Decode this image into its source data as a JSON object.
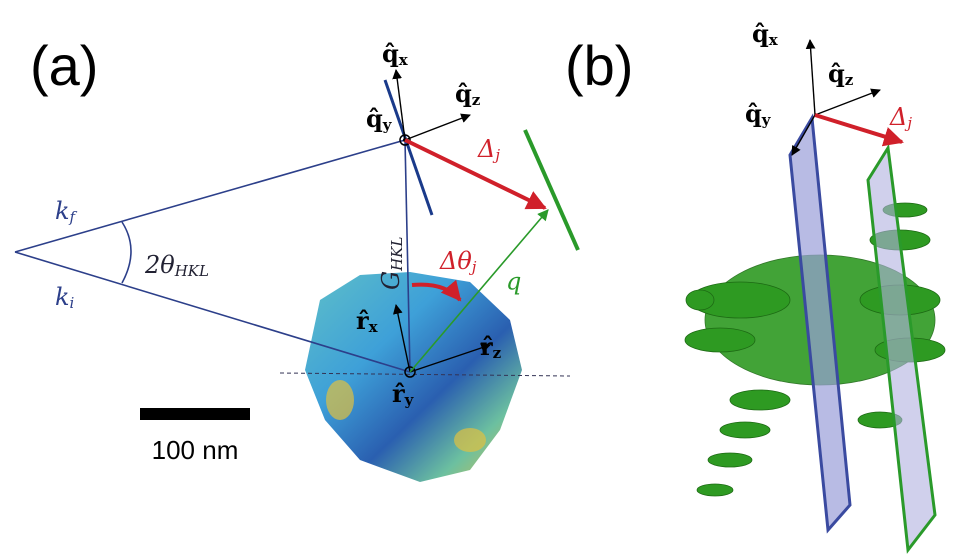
{
  "panel_a": {
    "label": "(a)",
    "qx": {
      "base": "q̂",
      "sub": "x"
    },
    "qz": {
      "base": "q̂",
      "sub": "z"
    },
    "qy": {
      "base": "q̂",
      "sub": "y"
    },
    "delta": {
      "base": "Δ",
      "sub": "j"
    },
    "kf": {
      "base": "k",
      "sub": "f"
    },
    "ki": {
      "base": "k",
      "sub": "i"
    },
    "angle": {
      "base": "2θ",
      "sub": "HKL"
    },
    "g": {
      "base": "G",
      "sub": "HKL"
    },
    "dtheta": {
      "base": "Δθ",
      "sub": "j"
    },
    "q": "q",
    "rx": {
      "base": "r̂",
      "sub": "x"
    },
    "rz": {
      "base": "r̂",
      "sub": "z"
    },
    "ry": {
      "base": "r̂",
      "sub": "y"
    },
    "scale": "100 nm"
  },
  "panel_b": {
    "label": "(b)",
    "qx": {
      "base": "q̂",
      "sub": "x"
    },
    "qz": {
      "base": "q̂",
      "sub": "z"
    },
    "qy": {
      "base": "q̂",
      "sub": "y"
    },
    "delta": {
      "base": "Δ",
      "sub": "j"
    }
  }
}
